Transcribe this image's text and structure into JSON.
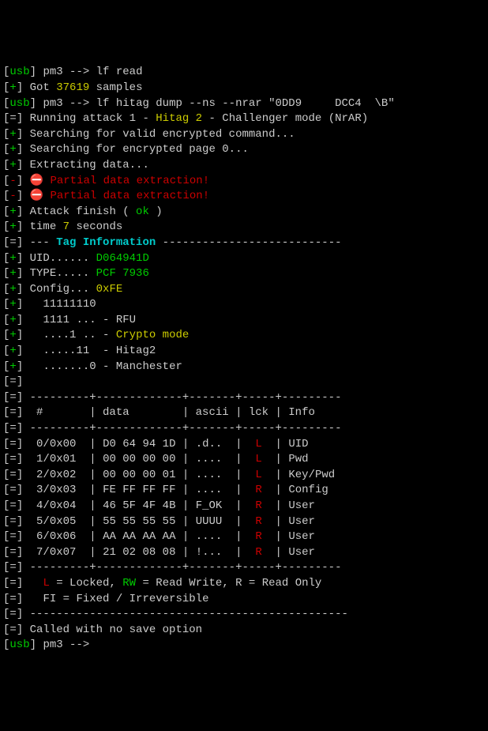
{
  "colors": {
    "bg": "#000000",
    "fg": "#cccccc",
    "green": "#00cc00",
    "yellow": "#cccc00",
    "red": "#cc0000",
    "cyan": "#00cccc"
  },
  "prompt_prefix_usb": "usb",
  "prompt_name": "pm3",
  "prompt_arrow": "-->",
  "cmd1": "lf read",
  "got_label": "Got",
  "samples_count": "37619",
  "samples_label": "samples",
  "cmd2": "lf hitag dump --ns --nrar \"0DD9     DCC4  \\B\"",
  "running_attack_prefix": "Running attack 1 -",
  "hitag2_label": "Hitag 2",
  "challenger_suffix": "- Challenger mode (NrAR)",
  "search_valid_cmd": "Searching for valid encrypted command...",
  "search_page0": "Searching for encrypted page 0...",
  "extracting": "Extracting data...",
  "partial_extraction": "Partial data extraction!",
  "attack_finish_prefix": "Attack finish (",
  "ok_label": "ok",
  "attack_finish_suffix": ")",
  "time_label_prefix": "time",
  "time_seconds": "7",
  "time_label_suffix": "seconds",
  "tag_info_dashes_left": "---",
  "tag_info_label": "Tag Information",
  "tag_info_dashes_right": "---------------------------",
  "uid_label": "UID......",
  "uid_value": "D064941D",
  "type_label": "TYPE.....",
  "type_value": "PCF 7936",
  "config_label": "Config...",
  "config_value": "0xFE",
  "config_bits": "11111110",
  "rfu_bits": "1111 ...",
  "rfu_label": "- RFU",
  "crypto_bits": "....1 ..",
  "crypto_dash": "-",
  "crypto_label": "Crypto mode",
  "hitag2_bits": ".....11 ",
  "hitag2_bits_label": "- Hitag2",
  "manchester_bits": ".......0",
  "manchester_label": "- Manchester",
  "table_top_border": " ---------+-------------+-------+-----+---------",
  "table_header": "  #       | data        | ascii | lck | Info",
  "table_mid_border": " ---------+-------------+-------+-----+---------",
  "rows": [
    {
      "idx": "0/0x00",
      "data": "D0 64 94 1D",
      "ascii": ".d..",
      "lck": "L",
      "info": "UID"
    },
    {
      "idx": "1/0x01",
      "data": "00 00 00 00",
      "ascii": "....",
      "lck": "L",
      "info": "Pwd"
    },
    {
      "idx": "2/0x02",
      "data": "00 00 00 01",
      "ascii": "....",
      "lck": "L",
      "info": "Key/Pwd"
    },
    {
      "idx": "3/0x03",
      "data": "FE FF FF FF",
      "ascii": "....",
      "lck": "R",
      "info": "Config"
    },
    {
      "idx": "4/0x04",
      "data": "46 5F 4F 4B",
      "ascii": "F_OK",
      "lck": "R",
      "info": "User"
    },
    {
      "idx": "5/0x05",
      "data": "55 55 55 55",
      "ascii": "UUUU",
      "lck": "R",
      "info": "User"
    },
    {
      "idx": "6/0x06",
      "data": "AA AA AA AA",
      "ascii": "....",
      "lck": "R",
      "info": "User"
    },
    {
      "idx": "7/0x07",
      "data": "21 02 08 08",
      "ascii": "!...",
      "lck": "R",
      "info": "User"
    }
  ],
  "table_bot_border": " ---------+-------------+-------+-----+---------",
  "legend_l": "L",
  "legend_locked": "= Locked,",
  "legend_rw": "RW",
  "legend_readwrite": "= Read Write, R = Read Only",
  "legend_fi": "FI = Fixed / Irreversible",
  "border_separator": " ------------------------------------------------",
  "no_save_option": "Called with no save option",
  "stop_emoji": "⛔"
}
